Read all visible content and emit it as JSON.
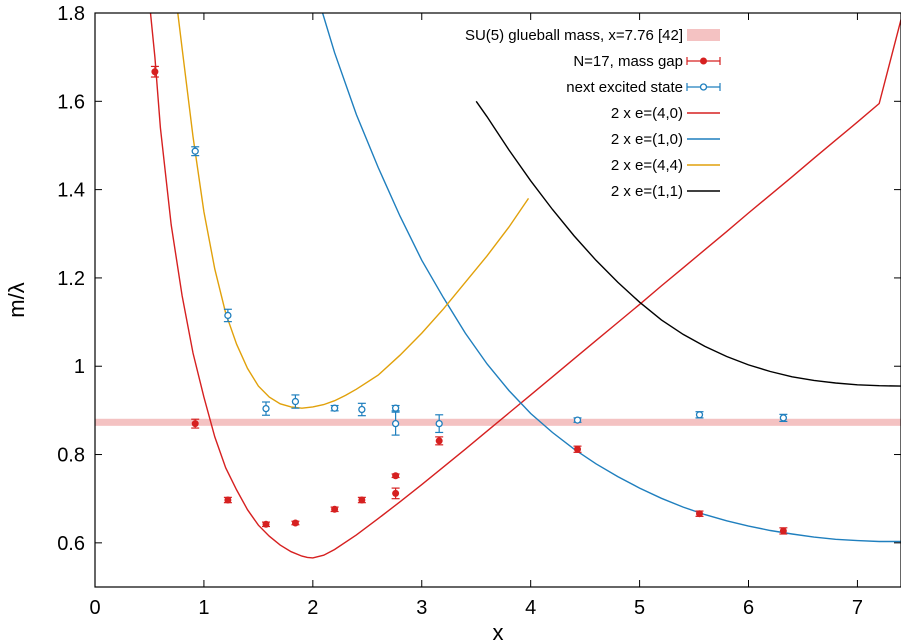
{
  "chart_data": {
    "type": "scatter",
    "title": "",
    "xlabel": "x",
    "ylabel": "m/λ",
    "xlim": [
      0,
      7.4
    ],
    "ylim": [
      0.5,
      1.8
    ],
    "xticks": [
      0,
      1,
      2,
      3,
      4,
      5,
      6,
      7
    ],
    "xtick_labels": [
      "0",
      "1",
      "2",
      "3",
      "4",
      "5",
      "6",
      "7"
    ],
    "yticks": [
      0.6,
      0.8,
      1.0,
      1.2,
      1.4,
      1.6,
      1.8
    ],
    "ytick_labels": [
      "0.6",
      "0.8",
      "1",
      "1.2",
      "1.4",
      "1.6",
      "1.8"
    ],
    "grid": false,
    "legend_position": "top-right",
    "band": {
      "name": "SU(5) glueball mass, x=7.76 [42]",
      "y_center": 0.873,
      "y_halfwidth": 0.008,
      "color": "#f4c2c2"
    },
    "series": [
      {
        "name": "N=17, mass gap",
        "kind": "points",
        "marker": "filled-circle",
        "color": "#d62020",
        "points": [
          {
            "x": 0.55,
            "y": 1.667,
            "err": 0.012
          },
          {
            "x": 0.92,
            "y": 0.87,
            "err": 0.01
          },
          {
            "x": 1.22,
            "y": 0.697,
            "err": 0.006
          },
          {
            "x": 1.57,
            "y": 0.642,
            "err": 0.005
          },
          {
            "x": 1.84,
            "y": 0.645,
            "err": 0.004
          },
          {
            "x": 2.2,
            "y": 0.676,
            "err": 0.005
          },
          {
            "x": 2.45,
            "y": 0.697,
            "err": 0.006
          },
          {
            "x": 2.76,
            "y": 0.712,
            "err": 0.012
          },
          {
            "x": 2.76,
            "y": 0.752,
            "err": 0.004
          },
          {
            "x": 3.16,
            "y": 0.831,
            "err": 0.009
          },
          {
            "x": 4.43,
            "y": 0.812,
            "err": 0.007
          },
          {
            "x": 5.55,
            "y": 0.666,
            "err": 0.006
          },
          {
            "x": 6.32,
            "y": 0.627,
            "err": 0.007
          }
        ]
      },
      {
        "name": "next excited state",
        "kind": "points",
        "marker": "open-circle",
        "color": "#1f7fbe",
        "points": [
          {
            "x": 0.92,
            "y": 1.487,
            "err": 0.01
          },
          {
            "x": 1.22,
            "y": 1.115,
            "err": 0.014
          },
          {
            "x": 1.57,
            "y": 0.904,
            "err": 0.015
          },
          {
            "x": 1.84,
            "y": 0.92,
            "err": 0.015
          },
          {
            "x": 2.2,
            "y": 0.905,
            "err": 0.006
          },
          {
            "x": 2.45,
            "y": 0.902,
            "err": 0.014
          },
          {
            "x": 2.76,
            "y": 0.905,
            "err": 0.006
          },
          {
            "x": 2.76,
            "y": 0.87,
            "err": 0.026
          },
          {
            "x": 3.16,
            "y": 0.87,
            "err": 0.02
          },
          {
            "x": 4.43,
            "y": 0.878,
            "err": 0.005
          },
          {
            "x": 5.55,
            "y": 0.89,
            "err": 0.007
          },
          {
            "x": 6.32,
            "y": 0.883,
            "err": 0.008
          }
        ]
      },
      {
        "name": "2 x e=(4,0)",
        "kind": "line",
        "color": "#d62020",
        "x": [
          0.51,
          0.55,
          0.6,
          0.7,
          0.8,
          0.9,
          1.0,
          1.1,
          1.2,
          1.3,
          1.4,
          1.5,
          1.6,
          1.7,
          1.8,
          1.9,
          1.95,
          2.0,
          2.1,
          2.2,
          2.4,
          2.6,
          2.8,
          3.0,
          3.2,
          3.4,
          3.6,
          3.8,
          4.0,
          4.2,
          4.4,
          4.6,
          4.8,
          5.0,
          5.2,
          5.4,
          5.6,
          5.8,
          6.0,
          6.2,
          6.4,
          6.6,
          6.8,
          7.0,
          7.2,
          7.4
        ],
        "y": [
          1.8,
          1.7,
          1.54,
          1.32,
          1.16,
          1.03,
          0.93,
          0.84,
          0.77,
          0.72,
          0.675,
          0.64,
          0.615,
          0.595,
          0.58,
          0.57,
          0.567,
          0.566,
          0.572,
          0.585,
          0.618,
          0.655,
          0.693,
          0.732,
          0.772,
          0.812,
          0.853,
          0.894,
          0.935,
          0.976,
          1.017,
          1.058,
          1.099,
          1.14,
          1.182,
          1.223,
          1.264,
          1.305,
          1.347,
          1.388,
          1.429,
          1.471,
          1.512,
          1.553,
          1.595,
          1.785
        ]
      },
      {
        "name": "2 x e=(1,0)",
        "kind": "line",
        "color": "#1f7fbe",
        "x": [
          2.09,
          2.2,
          2.4,
          2.6,
          2.8,
          3.0,
          3.2,
          3.4,
          3.6,
          3.8,
          4.0,
          4.2,
          4.4,
          4.6,
          4.8,
          5.0,
          5.2,
          5.4,
          5.6,
          5.8,
          6.0,
          6.2,
          6.4,
          6.6,
          6.8,
          7.0,
          7.2,
          7.4
        ],
        "y": [
          1.8,
          1.71,
          1.57,
          1.45,
          1.34,
          1.24,
          1.155,
          1.075,
          1.005,
          0.945,
          0.893,
          0.85,
          0.812,
          0.779,
          0.75,
          0.724,
          0.701,
          0.681,
          0.664,
          0.65,
          0.638,
          0.628,
          0.62,
          0.613,
          0.608,
          0.605,
          0.603,
          0.603
        ]
      },
      {
        "name": "2 x e=(4,4)",
        "kind": "line",
        "color": "#e1a10b",
        "x": [
          0.76,
          0.8,
          0.9,
          1.0,
          1.1,
          1.2,
          1.3,
          1.4,
          1.5,
          1.6,
          1.7,
          1.8,
          1.9,
          2.0,
          2.1,
          2.2,
          2.3,
          2.4,
          2.6,
          2.8,
          3.0,
          3.2,
          3.4,
          3.6,
          3.8,
          3.98
        ],
        "y": [
          1.8,
          1.72,
          1.52,
          1.35,
          1.22,
          1.12,
          1.05,
          0.995,
          0.955,
          0.93,
          0.915,
          0.908,
          0.905,
          0.908,
          0.913,
          0.922,
          0.934,
          0.948,
          0.98,
          1.025,
          1.075,
          1.13,
          1.19,
          1.25,
          1.315,
          1.38
        ]
      },
      {
        "name": "2 x e=(1,1)",
        "kind": "line",
        "color": "#000000",
        "x": [
          3.5,
          3.6,
          3.8,
          4.0,
          4.2,
          4.4,
          4.6,
          4.8,
          5.0,
          5.2,
          5.4,
          5.6,
          5.8,
          6.0,
          6.2,
          6.4,
          6.6,
          6.8,
          7.0,
          7.2,
          7.4
        ],
        "y": [
          1.6,
          1.565,
          1.49,
          1.42,
          1.355,
          1.295,
          1.24,
          1.19,
          1.145,
          1.105,
          1.072,
          1.045,
          1.022,
          1.003,
          0.988,
          0.976,
          0.968,
          0.962,
          0.958,
          0.956,
          0.955
        ]
      }
    ]
  }
}
